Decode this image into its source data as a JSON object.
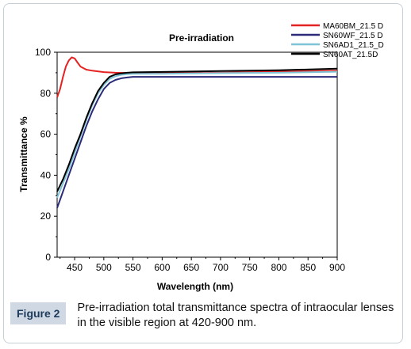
{
  "figure_label": "Figure 2",
  "caption": "Pre-irradiation total transmittance spectra of intraocular lenses in the visible region at 420-900 nm.",
  "chart_data": {
    "type": "line",
    "title": "Pre-irradiation",
    "xlabel": "Wavelength (nm)",
    "ylabel": "Transmittance %",
    "xlim": [
      420,
      900
    ],
    "ylim": [
      0,
      100
    ],
    "xticks": [
      450,
      500,
      550,
      600,
      650,
      700,
      750,
      800,
      850,
      900
    ],
    "yticks": [
      0,
      20,
      40,
      60,
      80,
      100
    ],
    "legend_position": "top-right",
    "grid": false,
    "series": [
      {
        "name": "MA60BM_21.5 D",
        "color": "#e52222",
        "x": [
          420,
          425,
          430,
          435,
          440,
          445,
          450,
          455,
          460,
          470,
          480,
          500,
          520,
          550,
          600,
          700,
          800,
          900
        ],
        "y": [
          78,
          82,
          88,
          93,
          96,
          97.5,
          97,
          95,
          93,
          91.5,
          91,
          90.3,
          90,
          89.8,
          89.8,
          90,
          90.5,
          91
        ]
      },
      {
        "name": "SN60WF_21.5 D",
        "color": "#2b2b7a",
        "x": [
          420,
          430,
          440,
          450,
          460,
          470,
          480,
          490,
          500,
          510,
          520,
          530,
          540,
          550,
          600,
          700,
          800,
          900
        ],
        "y": [
          24,
          32,
          40,
          48,
          56,
          64,
          71,
          77,
          82,
          85,
          86.5,
          87.3,
          87.7,
          88,
          88,
          88,
          88,
          88
        ]
      },
      {
        "name": "SN6AD1_21.5_D",
        "color": "#7fc3d6",
        "x": [
          420,
          430,
          440,
          450,
          460,
          470,
          480,
          490,
          500,
          510,
          520,
          530,
          540,
          550,
          600,
          700,
          800,
          900
        ],
        "y": [
          29,
          36,
          43,
          51,
          59,
          67,
          74,
          80,
          84,
          87,
          88.3,
          89,
          89.3,
          89.5,
          89.5,
          89.8,
          90,
          90.5
        ]
      },
      {
        "name": "SN60AT_21.5D",
        "color": "#000000",
        "x": [
          420,
          430,
          440,
          450,
          460,
          470,
          480,
          490,
          500,
          510,
          520,
          530,
          540,
          550,
          600,
          700,
          800,
          900
        ],
        "y": [
          32,
          38,
          45,
          53,
          60,
          68,
          75,
          81,
          85,
          88,
          89.2,
          89.7,
          90,
          90.2,
          90.4,
          90.8,
          91.2,
          92
        ]
      }
    ]
  }
}
